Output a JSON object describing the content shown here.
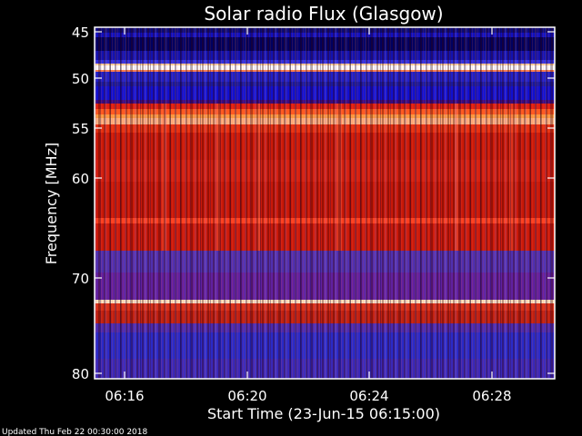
{
  "chart_data": {
    "type": "heatmap",
    "title": "Solar radio Flux (Glasgow)",
    "xlabel": "Start Time (23-Jun-15 06:15:00)",
    "ylabel": "Frequency [MHz]",
    "x_ticks": [
      "06:16",
      "06:20",
      "06:24",
      "06:28"
    ],
    "y_ticks": [
      "45",
      "50",
      "55",
      "60",
      "70",
      "80"
    ],
    "y_scale": "reciprocal",
    "ylim": [
      45,
      80
    ],
    "colormap": "blue-red-white",
    "footer": "Updated Thu Feb 22 00:30:00 2018"
  }
}
